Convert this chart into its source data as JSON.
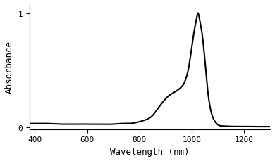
{
  "title": "",
  "xlabel": "Wavelength (nm)",
  "ylabel": "Absorbance",
  "xlim": [
    380,
    1300
  ],
  "ylim": [
    -0.02,
    1.08
  ],
  "xticks": [
    400,
    600,
    800,
    1000,
    1200
  ],
  "yticks": [
    0,
    1
  ],
  "line_color": "#000000",
  "line_width": 1.5,
  "bg_color": "#ffffff",
  "keypoints_x": [
    380,
    400,
    450,
    500,
    550,
    600,
    650,
    700,
    730,
    760,
    790,
    820,
    850,
    870,
    890,
    910,
    930,
    950,
    960,
    970,
    980,
    990,
    1000,
    1010,
    1020,
    1023,
    1030,
    1040,
    1050,
    1060,
    1070,
    1080,
    1090,
    1100,
    1120,
    1150,
    1200,
    1250,
    1300
  ],
  "keypoints_y": [
    0.03,
    0.03,
    0.03,
    0.025,
    0.025,
    0.025,
    0.025,
    0.025,
    0.03,
    0.03,
    0.04,
    0.06,
    0.1,
    0.16,
    0.22,
    0.27,
    0.3,
    0.33,
    0.35,
    0.38,
    0.44,
    0.54,
    0.7,
    0.85,
    0.97,
    1.0,
    0.95,
    0.82,
    0.6,
    0.35,
    0.18,
    0.09,
    0.045,
    0.02,
    0.008,
    0.005,
    0.004,
    0.003,
    0.003
  ]
}
